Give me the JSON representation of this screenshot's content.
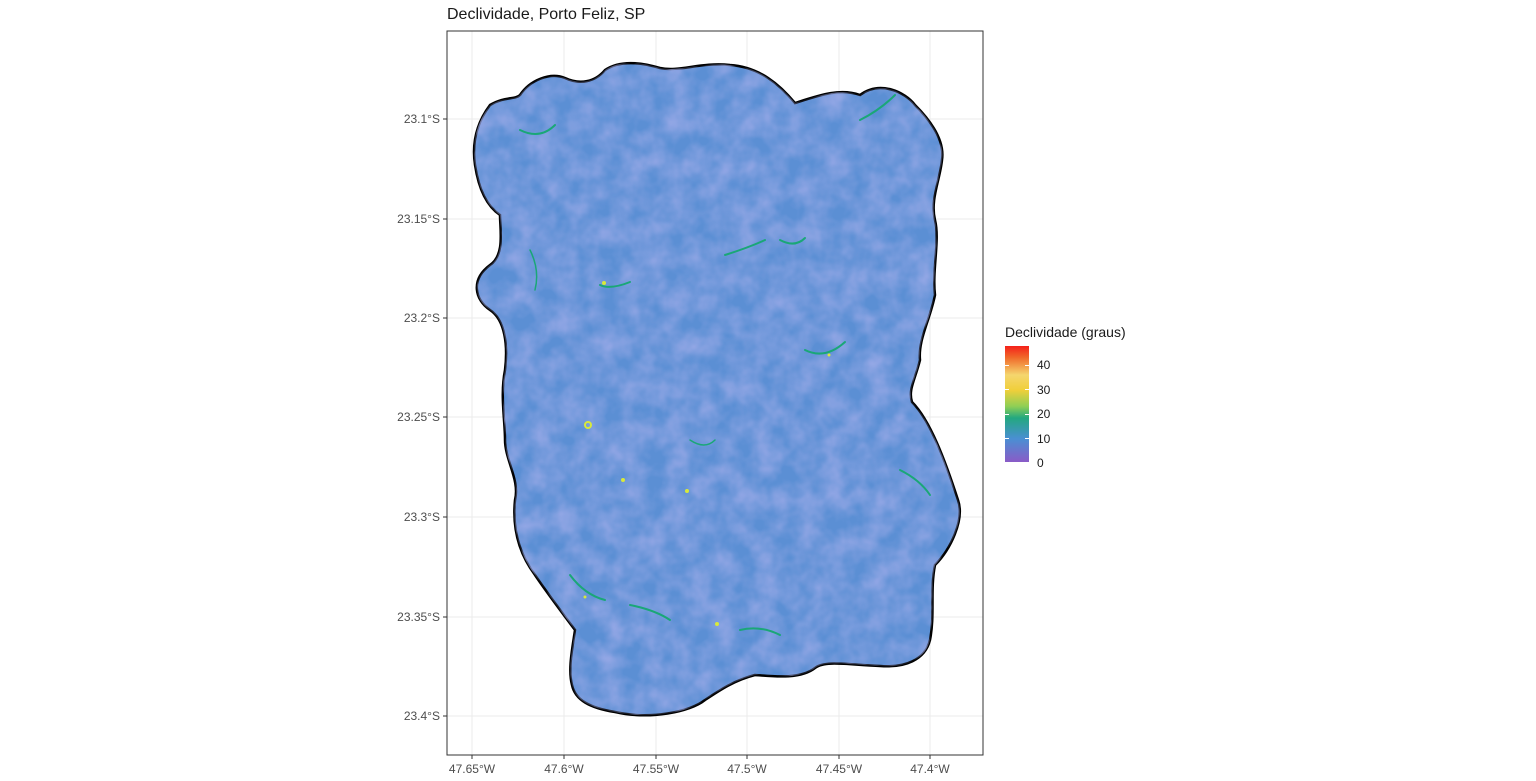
{
  "map": {
    "title": "Declividade, Porto Feliz, SP",
    "y_axis": {
      "ticks": [
        "23.1°S",
        "23.15°S",
        "23.2°S",
        "23.25°S",
        "23.3°S",
        "23.35°S",
        "23.4°S"
      ]
    },
    "x_axis": {
      "ticks": [
        "47.65°W",
        "47.6°W",
        "47.55°W",
        "47.5°W",
        "47.45°W",
        "47.4°W"
      ]
    },
    "fill_colors": {
      "low": "#7b5cc4",
      "mid": "#4a8fd3",
      "streams": "#1aa777",
      "peaks": "#d8e93a"
    }
  },
  "legend": {
    "title": "Declividade (graus)",
    "ticks": [
      "40",
      "30",
      "20",
      "10",
      "0"
    ],
    "colors": [
      "#8a5bc7",
      "#4a8fd3",
      "#23a880",
      "#8fcf55",
      "#f0cf3a",
      "#f06a2a",
      "#f5201a"
    ]
  }
}
